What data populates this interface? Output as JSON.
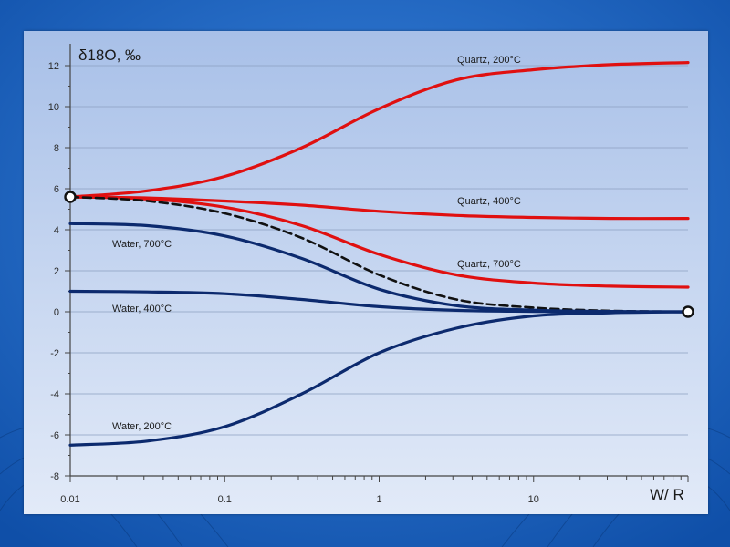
{
  "chart_data": {
    "type": "line",
    "title": "",
    "ylabel": "δ18O, ‰",
    "xlabel": "W/ R",
    "xscale": "log",
    "xlim": [
      0.01,
      100
    ],
    "ylim": [
      -8,
      13
    ],
    "grid": "horizontal",
    "x_ticks": [
      "0.01",
      "0.1",
      "1",
      "10"
    ],
    "y_ticks": [
      "12",
      "10",
      "8",
      "6",
      "4",
      "2",
      "0",
      "-2",
      "-4",
      "-6",
      "-8"
    ],
    "series": [
      {
        "name": "Quartz, 200°C",
        "color": "#e01010",
        "dash": "solid",
        "x": [
          0.01,
          0.0316,
          0.1,
          0.316,
          1,
          3.16,
          10,
          31.6,
          100
        ],
        "y": [
          5.6,
          5.9,
          6.6,
          8.0,
          9.9,
          11.3,
          11.8,
          12.05,
          12.15
        ]
      },
      {
        "name": "Quartz, 400°C",
        "color": "#e01010",
        "dash": "solid",
        "x": [
          0.01,
          0.0316,
          0.1,
          0.316,
          1,
          3.16,
          10,
          31.6,
          100
        ],
        "y": [
          5.6,
          5.55,
          5.4,
          5.2,
          4.9,
          4.7,
          4.6,
          4.55,
          4.55
        ]
      },
      {
        "name": "Quartz, 700°C",
        "color": "#e01010",
        "dash": "solid",
        "x": [
          0.01,
          0.0316,
          0.1,
          0.316,
          1,
          3.16,
          10,
          31.6,
          100
        ],
        "y": [
          5.6,
          5.5,
          5.1,
          4.2,
          2.8,
          1.8,
          1.4,
          1.25,
          1.2
        ]
      },
      {
        "name": "",
        "color": "#111111",
        "dash": "dashed",
        "x": [
          0.01,
          0.0316,
          0.1,
          0.316,
          1,
          3.16,
          10,
          31.6,
          100
        ],
        "y": [
          5.6,
          5.4,
          4.8,
          3.6,
          1.8,
          0.6,
          0.2,
          0.05,
          0.0
        ]
      },
      {
        "name": "Water, 700°C",
        "color": "#0c2a6e",
        "dash": "solid",
        "x": [
          0.01,
          0.0316,
          0.1,
          0.316,
          1,
          3.16,
          10,
          31.6,
          100
        ],
        "y": [
          4.3,
          4.2,
          3.7,
          2.6,
          1.1,
          0.3,
          0.08,
          0.02,
          0.0
        ]
      },
      {
        "name": "Water, 400°C",
        "color": "#0c2a6e",
        "dash": "solid",
        "x": [
          0.01,
          0.0316,
          0.1,
          0.316,
          1,
          3.16,
          10,
          31.6,
          100
        ],
        "y": [
          1.0,
          0.97,
          0.88,
          0.6,
          0.25,
          0.07,
          0.02,
          0.0,
          0.0
        ]
      },
      {
        "name": "Water, 200°C",
        "color": "#0c2a6e",
        "dash": "solid",
        "x": [
          0.01,
          0.0316,
          0.1,
          0.316,
          1,
          3.16,
          10,
          31.6,
          100
        ],
        "y": [
          -6.5,
          -6.3,
          -5.6,
          -4.0,
          -2.0,
          -0.8,
          -0.2,
          -0.05,
          0.0
        ]
      }
    ],
    "endpoints": [
      {
        "x": 0.01,
        "y": 5.6
      },
      {
        "x": 100,
        "y": 0.0
      }
    ]
  }
}
